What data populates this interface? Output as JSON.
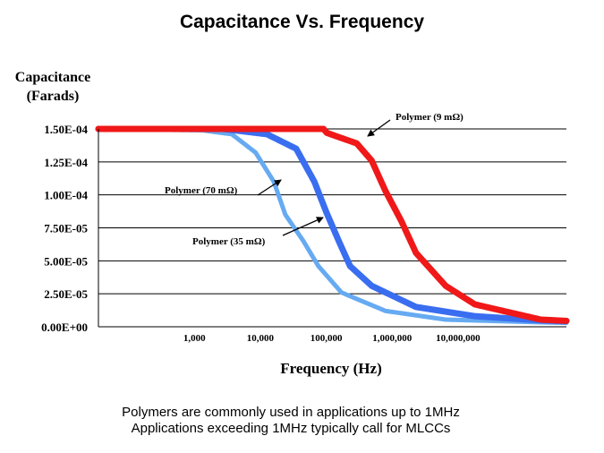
{
  "chart_data": {
    "type": "line",
    "title": "Capacitance Vs. Frequency",
    "ylabel": [
      "Capacitance",
      "(Farads)"
    ],
    "xlabel": "Frequency (Hz)",
    "xscale": "log",
    "xlim": [
      35,
      440000000
    ],
    "ylim": [
      0,
      0.00015
    ],
    "grid": "horizontal",
    "legend": "none",
    "yticks": [
      {
        "value": 0.00015,
        "label": "1.50E-04"
      },
      {
        "value": 0.000125,
        "label": "1.25E-04"
      },
      {
        "value": 0.0001,
        "label": "1.00E-04"
      },
      {
        "value": 7.5e-05,
        "label": "7.50E-05"
      },
      {
        "value": 5e-05,
        "label": "5.00E-05"
      },
      {
        "value": 2.5e-05,
        "label": "2.50E-05"
      },
      {
        "value": 0,
        "label": "0.00E+00"
      }
    ],
    "xticks": [
      {
        "value": 1000,
        "label": "1,000"
      },
      {
        "value": 10000,
        "label": "10,000"
      },
      {
        "value": 100000,
        "label": "100,000"
      },
      {
        "value": 1000000,
        "label": "1,000,000"
      },
      {
        "value": 10000000,
        "label": "10,000,000"
      }
    ],
    "series": [
      {
        "name": "Polymer (70 mΩ)",
        "color": "#66aaf2",
        "x": [
          35,
          1300,
          3700,
          8500,
          16000,
          24000,
          45000,
          76000,
          170000,
          790000,
          6500000,
          180000000,
          440000000
        ],
        "y": [
          0.00015,
          0.000149,
          0.000146,
          0.000132,
          0.00011,
          8.5e-05,
          6.5e-05,
          4.6e-05,
          2.6e-05,
          1.2e-05,
          5.4e-06,
          3.4e-06,
          3e-06
        ]
      },
      {
        "name": "Polymer (35 mΩ)",
        "color": "#3a6ef0",
        "x": [
          35,
          2700,
          12600,
          35000,
          66000,
          100000,
          155000,
          230000,
          490000,
          2300000,
          18000000,
          180000000,
          440000000
        ],
        "y": [
          0.00015,
          0.00015,
          0.000146,
          0.000135,
          0.00011,
          8.7e-05,
          6.5e-05,
          4.6e-05,
          3.1e-05,
          1.5e-05,
          8e-06,
          4.8e-06,
          4.2e-06
        ]
      },
      {
        "name": "Polymer (9 mΩ)",
        "color": "#f01818",
        "x": [
          35,
          91000,
          102000,
          290000,
          490000,
          790000,
          1380000,
          2300000,
          6500000,
          18000000,
          180000000,
          440000000
        ],
        "y": [
          0.00015,
          0.00015,
          0.000147,
          0.000139,
          0.000126,
          0.000103,
          8e-05,
          5.6e-05,
          3.1e-05,
          1.7e-05,
          5.4e-06,
          4.5e-06
        ]
      }
    ],
    "annotations": [
      {
        "text": "Polymer (9 mΩ)",
        "target_series": "Polymer (9 mΩ)"
      },
      {
        "text": "Polymer (70 mΩ)",
        "target_series": "Polymer (70 mΩ)"
      },
      {
        "text": "Polymer (35 mΩ)",
        "target_series": "Polymer (35 mΩ)"
      }
    ]
  },
  "notes": [
    "Polymers are commonly used in applications up to 1MHz",
    "Applications exceeding 1MHz typically call for MLCCs"
  ]
}
